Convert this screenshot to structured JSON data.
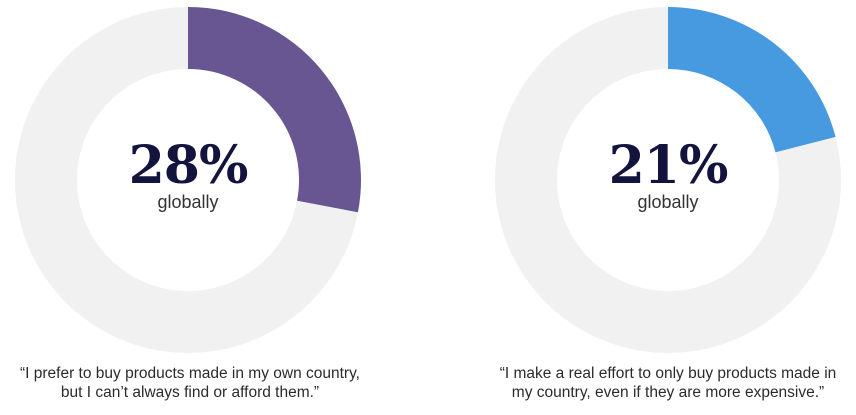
{
  "chart_data": [
    {
      "type": "pie",
      "variant": "donut",
      "center_value": "28%",
      "center_label": "globally",
      "slices": [
        {
          "label": "",
          "value": 28,
          "color": "#675692"
        },
        {
          "label": "",
          "value": 72,
          "color": "#f1f1f1"
        }
      ],
      "caption": [
        "“I prefer to buy products made in my own country,",
        "but I can’t always find or afford them.”"
      ]
    },
    {
      "type": "pie",
      "variant": "donut",
      "center_value": "21%",
      "center_label": "globally",
      "slices": [
        {
          "label": "",
          "value": 21,
          "color": "#4799e0"
        },
        {
          "label": "",
          "value": 79,
          "color": "#f1f1f1"
        }
      ],
      "caption": [
        "“I make a real effort to only buy products made in",
        "my country, even if they are more expensive.”"
      ]
    }
  ]
}
